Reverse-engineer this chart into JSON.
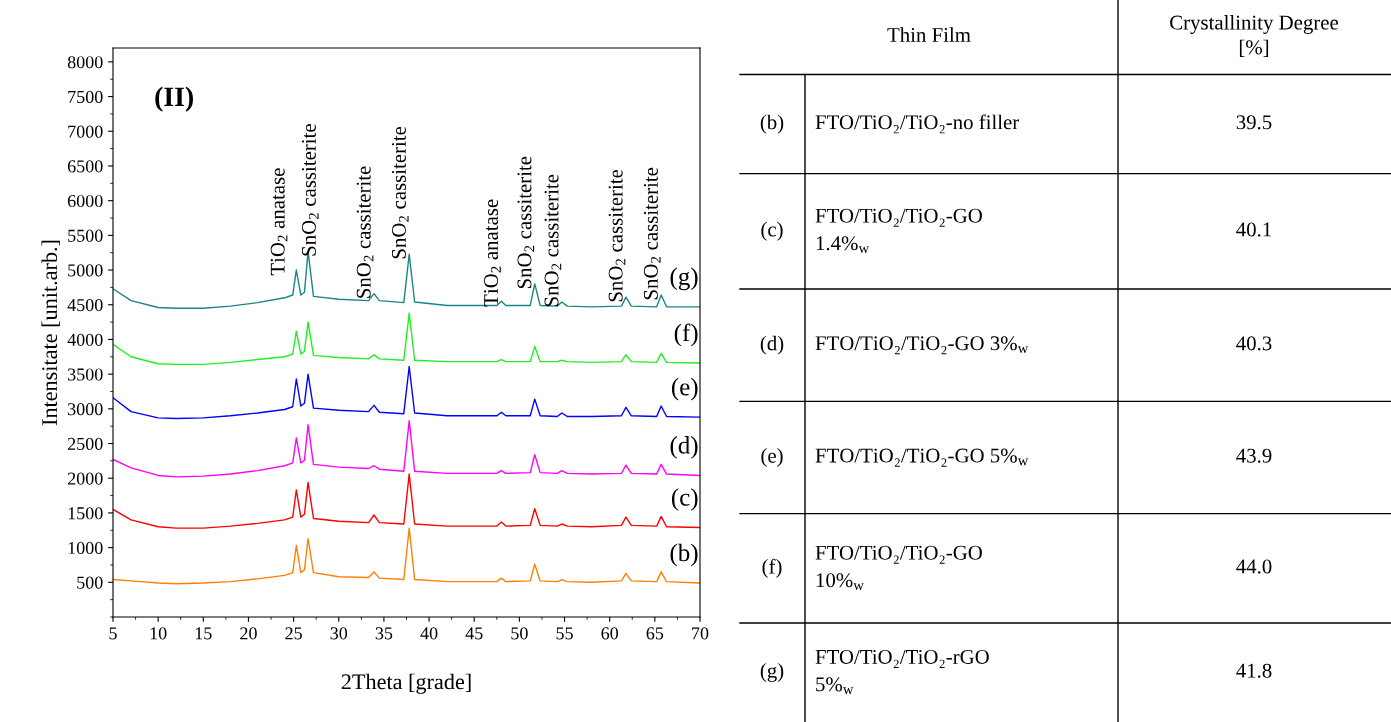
{
  "chart_data": [
    {
      "type": "line",
      "xlabel": "2Theta [grade]",
      "ylabel": "Intensitate [unit.arb.]",
      "xlim": [
        5,
        70
      ],
      "ylim": [
        0,
        8200
      ],
      "xticks": [
        5,
        10,
        15,
        20,
        25,
        30,
        35,
        40,
        45,
        50,
        55,
        60,
        65,
        70
      ],
      "yticks": [
        500,
        1000,
        1500,
        2000,
        2500,
        3000,
        3500,
        4000,
        4500,
        5000,
        5500,
        6000,
        6500,
        7000,
        7500,
        8000
      ],
      "grid": false,
      "legend": false,
      "marker": "none",
      "line_style": "solid",
      "x": [
        5,
        7,
        10,
        12,
        15,
        18,
        21,
        24,
        24.9,
        25.3,
        25.8,
        26.2,
        26.6,
        27.2,
        30,
        33.3,
        33.9,
        34.5,
        37.2,
        37.8,
        38.4,
        42,
        47.5,
        48,
        48.5,
        51.2,
        51.7,
        52.3,
        54.2,
        54.7,
        55.3,
        58,
        61.3,
        61.8,
        62.4,
        65.2,
        65.7,
        66.3,
        70
      ],
      "series": [
        {
          "name": "(b)",
          "color": "#ff8000",
          "values": [
            540,
            520,
            490,
            480,
            490,
            510,
            550,
            600,
            640,
            1030,
            640,
            680,
            1130,
            640,
            580,
            570,
            650,
            560,
            540,
            1280,
            540,
            510,
            510,
            560,
            510,
            520,
            760,
            520,
            510,
            540,
            510,
            500,
            520,
            630,
            520,
            510,
            650,
            510,
            490
          ]
        },
        {
          "name": "(c)",
          "color": "#ff0000",
          "values": [
            1550,
            1400,
            1300,
            1280,
            1280,
            1310,
            1350,
            1400,
            1440,
            1830,
            1440,
            1480,
            1940,
            1420,
            1380,
            1360,
            1470,
            1360,
            1340,
            2060,
            1340,
            1310,
            1310,
            1370,
            1310,
            1320,
            1560,
            1320,
            1310,
            1340,
            1310,
            1300,
            1320,
            1440,
            1320,
            1310,
            1450,
            1300,
            1290
          ]
        },
        {
          "name": "(d)",
          "color": "#ff00ff",
          "values": [
            2270,
            2150,
            2040,
            2020,
            2030,
            2060,
            2110,
            2180,
            2220,
            2580,
            2220,
            2260,
            2770,
            2200,
            2160,
            2140,
            2180,
            2130,
            2100,
            2830,
            2100,
            2070,
            2070,
            2110,
            2070,
            2080,
            2340,
            2080,
            2070,
            2110,
            2070,
            2060,
            2070,
            2190,
            2070,
            2060,
            2200,
            2060,
            2040
          ]
        },
        {
          "name": "(e)",
          "color": "#0000ff",
          "values": [
            3160,
            2960,
            2870,
            2860,
            2870,
            2900,
            2940,
            2990,
            3030,
            3430,
            3040,
            3080,
            3500,
            3010,
            2980,
            2960,
            3050,
            2950,
            2930,
            3610,
            2940,
            2900,
            2900,
            2950,
            2900,
            2900,
            3140,
            2900,
            2890,
            2940,
            2890,
            2890,
            2900,
            3020,
            2900,
            2890,
            3040,
            2890,
            2880
          ]
        },
        {
          "name": "(f)",
          "color": "#22ee22",
          "values": [
            3930,
            3750,
            3650,
            3640,
            3640,
            3670,
            3710,
            3750,
            3790,
            4120,
            3790,
            3830,
            4250,
            3770,
            3740,
            3720,
            3780,
            3720,
            3700,
            4380,
            3700,
            3680,
            3680,
            3710,
            3680,
            3680,
            3900,
            3680,
            3680,
            3700,
            3680,
            3670,
            3680,
            3780,
            3680,
            3670,
            3800,
            3670,
            3660
          ]
        },
        {
          "name": "(g)",
          "color": "#1a8585",
          "values": [
            4730,
            4560,
            4460,
            4450,
            4450,
            4480,
            4530,
            4600,
            4640,
            5000,
            4640,
            4680,
            5270,
            4620,
            4580,
            4560,
            4660,
            4560,
            4530,
            5230,
            4540,
            4490,
            4490,
            4550,
            4490,
            4490,
            4800,
            4490,
            4480,
            4540,
            4480,
            4470,
            4480,
            4610,
            4480,
            4470,
            4640,
            4470,
            4470
          ]
        }
      ],
      "annotations": [
        "(II)",
        {
          "text": "TiO$_{2}$ anatase",
          "x": 25.3,
          "y": 5000
        },
        {
          "text": "SnO$_{2}$ cassiterite",
          "x": 26.6,
          "y": 5270
        },
        {
          "text": "SnO$_{2}$ cassiterite",
          "x": 33.9,
          "y": 4660
        },
        {
          "text": "SnO$_{2}$ cassiterite",
          "x": 37.8,
          "y": 5230
        },
        {
          "text": "TiO$_{2}$ anatase",
          "x": 48,
          "y": 4550
        },
        {
          "text": "SnO$_{2}$ cassiterite",
          "x": 51.7,
          "y": 4800
        },
        {
          "text": "SnO$_{2}$ cassiterite",
          "x": 54.7,
          "y": 4540
        },
        {
          "text": "SnO$_{2}$ cassiterite",
          "x": 61.8,
          "y": 4610
        },
        {
          "text": "SnO$_{2}$ cassiterite",
          "x": 65.7,
          "y": 4640
        }
      ]
    },
    {
      "type": "other",
      "annotations": [
        "Thin Film",
        "Crystallinity Degree\n[%]",
        "(b)",
        "FTO/TiO₂/TiO₂-no filler",
        "39.5",
        "(c)",
        "FTO/TiO₂/TiO₂-GO\n1.4%$_{w}$",
        "40.1",
        "(d)",
        "FTO/TiO₂/TiO₂-GO 3%$_{w}$",
        "40.3",
        "(e)",
        "FTO/TiO₂/TiO₂-GO 5%$_{w}$",
        "43.9",
        "(f)",
        "FTO/TiO₂/TiO₂-GO\n10%$_{w}$",
        "44.0",
        "(g)",
        "FTO/TiO₂/TiO₂-rGO\n5%$_{w}$",
        "41.8"
      ]
    }
  ]
}
